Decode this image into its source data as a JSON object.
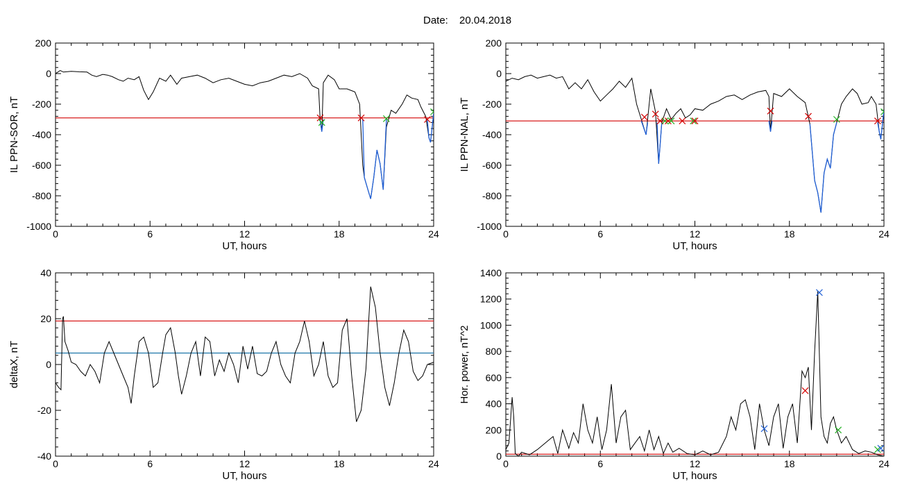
{
  "header": {
    "date_label": "Date:",
    "date_value": "20.04.2018"
  },
  "colors": {
    "trace": "#000000",
    "threshold": "#d40000",
    "cyan_level": "#1a73a8",
    "blue_overlay": "#1f5fd6",
    "marker_red": "#d40000",
    "marker_blue": "#1f5fd6",
    "marker_green": "#22b022"
  },
  "chart_data": [
    {
      "type": "line",
      "xlabel": "UT, hours",
      "ylabel": "IL PPN-SOR, nT",
      "xlim": [
        0,
        24
      ],
      "ylim": [
        -1000,
        200
      ],
      "xticks": [
        0,
        6,
        12,
        18,
        24
      ],
      "yticks": [
        200,
        0,
        -200,
        -400,
        -600,
        -800,
        -1000
      ],
      "threshold": -290,
      "series": [
        {
          "x": [
            0,
            0.3,
            0.5,
            1,
            1.5,
            2,
            2.3,
            2.6,
            3,
            3.3,
            3.6,
            4,
            4.3,
            4.6,
            5,
            5.3,
            5.6,
            5.9,
            6.2,
            6.6,
            7,
            7.3,
            7.7,
            8,
            8.5,
            9,
            9.5,
            10,
            10.5,
            11,
            11.5,
            12,
            12.5,
            13,
            13.5,
            14,
            14.5,
            15,
            15.5,
            16,
            16.3,
            16.7,
            16.8,
            16.9,
            17,
            17.3,
            17.7,
            18,
            18.5,
            19,
            19.3,
            19.5,
            19.6,
            19.8,
            20,
            20.2,
            20.4,
            20.6,
            20.8,
            21,
            21.3,
            21.6,
            22,
            22.3,
            22.6,
            23,
            23.2,
            23.5,
            23.7,
            23.8,
            24
          ],
          "y": [
            0,
            20,
            10,
            15,
            12,
            10,
            -10,
            -20,
            -5,
            -10,
            -20,
            -40,
            -50,
            -30,
            -40,
            -20,
            -110,
            -170,
            -120,
            -30,
            -50,
            -10,
            -70,
            -30,
            -20,
            -10,
            -30,
            -60,
            -40,
            -30,
            -50,
            -70,
            -80,
            -60,
            -50,
            -30,
            -10,
            -20,
            0,
            -30,
            -80,
            -100,
            -310,
            -380,
            -60,
            -10,
            -40,
            -100,
            -100,
            -120,
            -200,
            -600,
            -680,
            -750,
            -820,
            -680,
            -500,
            -590,
            -760,
            -350,
            -240,
            -260,
            -200,
            -140,
            -160,
            -170,
            -220,
            -280,
            -420,
            -450,
            -260
          ]
        },
        {
          "name": "blue overlay",
          "color": "blue",
          "segments": [
            {
              "x": [
                16.8,
                16.9,
                17
              ],
              "y": [
                -310,
                -380,
                -300
              ]
            },
            {
              "x": [
                19.5,
                19.6,
                19.8,
                20,
                20.2,
                20.4,
                20.6,
                20.8,
                21
              ],
              "y": [
                -300,
                -680,
                -750,
                -820,
                -680,
                -500,
                -590,
                -760,
                -300
              ]
            },
            {
              "x": [
                23.6,
                23.7,
                23.8,
                24
              ],
              "y": [
                -300,
                -420,
                -450,
                -260
              ]
            }
          ]
        }
      ],
      "markers": [
        {
          "x": 16.8,
          "y": -290,
          "color": "red"
        },
        {
          "x": 16.9,
          "y": -320,
          "color": "green"
        },
        {
          "x": 19.4,
          "y": -290,
          "color": "red"
        },
        {
          "x": 21.0,
          "y": -295,
          "color": "green"
        },
        {
          "x": 23.6,
          "y": -300,
          "color": "red"
        },
        {
          "x": 24.0,
          "y": -250,
          "color": "green"
        }
      ]
    },
    {
      "type": "line",
      "xlabel": "UT, hours",
      "ylabel": "IL PPN-NAL, nT",
      "xlim": [
        0,
        24
      ],
      "ylim": [
        -1000,
        200
      ],
      "xticks": [
        0,
        6,
        12,
        18,
        24
      ],
      "yticks": [
        200,
        0,
        -200,
        -400,
        -600,
        -800,
        -1000
      ],
      "threshold": -310,
      "series": [
        {
          "x": [
            0,
            0.4,
            0.8,
            1.2,
            1.6,
            2,
            2.4,
            2.8,
            3.2,
            3.6,
            4,
            4.4,
            4.8,
            5.2,
            5.6,
            6,
            6.4,
            6.8,
            7.2,
            7.6,
            8,
            8.3,
            8.6,
            8.9,
            9.2,
            9.5,
            9.7,
            9.9,
            10.2,
            10.5,
            10.8,
            11.1,
            11.4,
            11.7,
            12,
            12.5,
            13,
            13.5,
            14,
            14.5,
            15,
            15.5,
            16,
            16.5,
            16.7,
            16.8,
            17,
            17.5,
            18,
            18.5,
            19,
            19.3,
            19.6,
            19.8,
            20,
            20.2,
            20.4,
            20.6,
            20.8,
            21,
            21.3,
            21.6,
            22,
            22.3,
            22.6,
            23,
            23.2,
            23.5,
            23.7,
            23.8,
            24
          ],
          "y": [
            -50,
            -30,
            -40,
            -20,
            -10,
            -30,
            -20,
            -10,
            -30,
            -20,
            -100,
            -60,
            -100,
            -40,
            -120,
            -180,
            -140,
            -100,
            -50,
            -90,
            -30,
            -200,
            -300,
            -400,
            -100,
            -250,
            -590,
            -320,
            -230,
            -300,
            -260,
            -230,
            -290,
            -270,
            -230,
            -240,
            -200,
            -180,
            -150,
            -140,
            -170,
            -140,
            -120,
            -110,
            -150,
            -380,
            -130,
            -150,
            -100,
            -150,
            -190,
            -330,
            -700,
            -780,
            -910,
            -650,
            -560,
            -620,
            -400,
            -320,
            -200,
            -150,
            -100,
            -130,
            -200,
            -190,
            -150,
            -200,
            -380,
            -430,
            -240
          ]
        },
        {
          "name": "blue overlay",
          "color": "blue",
          "segments": [
            {
              "x": [
                8.6,
                8.9,
                9.0
              ],
              "y": [
                -310,
                -400,
                -320
              ]
            },
            {
              "x": [
                9.6,
                9.7,
                9.9
              ],
              "y": [
                -320,
                -590,
                -320
              ]
            },
            {
              "x": [
                16.7,
                16.8,
                16.9
              ],
              "y": [
                -310,
                -380,
                -310
              ]
            },
            {
              "x": [
                19.3,
                19.6,
                19.8,
                20,
                20.2,
                20.4,
                20.6,
                20.8,
                21
              ],
              "y": [
                -330,
                -700,
                -780,
                -910,
                -650,
                -560,
                -620,
                -400,
                -320
              ]
            },
            {
              "x": [
                23.6,
                23.7,
                23.8,
                24
              ],
              "y": [
                -320,
                -380,
                -430,
                -240
              ]
            }
          ]
        }
      ],
      "markers": [
        {
          "x": 8.8,
          "y": -285,
          "color": "red"
        },
        {
          "x": 9.5,
          "y": -265,
          "color": "red"
        },
        {
          "x": 9.8,
          "y": -310,
          "color": "red"
        },
        {
          "x": 10.1,
          "y": -310,
          "color": "green"
        },
        {
          "x": 10.3,
          "y": -310,
          "color": "red"
        },
        {
          "x": 10.5,
          "y": -310,
          "color": "green"
        },
        {
          "x": 11.2,
          "y": -310,
          "color": "red"
        },
        {
          "x": 11.9,
          "y": -310,
          "color": "green"
        },
        {
          "x": 12.0,
          "y": -310,
          "color": "red"
        },
        {
          "x": 16.8,
          "y": -245,
          "color": "red"
        },
        {
          "x": 19.2,
          "y": -280,
          "color": "red"
        },
        {
          "x": 21.0,
          "y": -300,
          "color": "green"
        },
        {
          "x": 23.6,
          "y": -310,
          "color": "red"
        },
        {
          "x": 24.0,
          "y": -250,
          "color": "green"
        }
      ]
    },
    {
      "type": "line",
      "xlabel": "UT, hours",
      "ylabel": "deltaX, nT",
      "xlim": [
        0,
        24
      ],
      "ylim": [
        -40,
        40
      ],
      "xticks": [
        0,
        6,
        12,
        18,
        24
      ],
      "yticks": [
        40,
        20,
        0,
        -20,
        -40
      ],
      "threshold": 19,
      "level": 5,
      "series": [
        {
          "x": [
            0,
            0.2,
            0.35,
            0.45,
            0.5,
            0.6,
            0.8,
            1,
            1.3,
            1.6,
            1.9,
            2.2,
            2.5,
            2.8,
            3.1,
            3.4,
            3.7,
            4,
            4.3,
            4.6,
            4.8,
            5,
            5.3,
            5.6,
            5.9,
            6.2,
            6.5,
            6.8,
            7,
            7.3,
            7.6,
            7.8,
            8,
            8.3,
            8.6,
            8.9,
            9.2,
            9.5,
            9.8,
            10.1,
            10.4,
            10.7,
            11,
            11.3,
            11.6,
            11.9,
            12.2,
            12.5,
            12.8,
            13.1,
            13.4,
            13.7,
            14,
            14.3,
            14.6,
            14.9,
            15.2,
            15.5,
            15.8,
            16.1,
            16.4,
            16.7,
            17,
            17.3,
            17.6,
            17.9,
            18.2,
            18.5,
            18.8,
            19.1,
            19.4,
            19.7,
            20,
            20.3,
            20.6,
            20.9,
            21.2,
            21.5,
            21.8,
            22.1,
            22.4,
            22.7,
            23,
            23.3,
            23.6,
            24
          ],
          "y": [
            -8,
            -10,
            -11,
            20,
            21,
            10,
            6,
            1,
            0,
            -3,
            -5,
            0,
            -3,
            -8,
            5,
            10,
            5,
            0,
            -5,
            -10,
            -17,
            -5,
            10,
            12,
            5,
            -10,
            -8,
            5,
            13,
            16,
            5,
            -5,
            -13,
            -5,
            5,
            10,
            -5,
            12,
            10,
            -5,
            2,
            -3,
            5,
            0,
            -8,
            8,
            -2,
            8,
            -4,
            -5,
            -3,
            5,
            10,
            0,
            -5,
            -8,
            5,
            10,
            19,
            10,
            -5,
            0,
            10,
            -5,
            -10,
            -8,
            15,
            20,
            -5,
            -25,
            -20,
            -2,
            34,
            25,
            5,
            -10,
            -18,
            -8,
            5,
            15,
            10,
            -3,
            -7,
            -5,
            0,
            1
          ]
        }
      ],
      "markers": []
    },
    {
      "type": "line",
      "xlabel": "UT, hours",
      "ylabel": "Hor. power, nT^2",
      "xlim": [
        0,
        24
      ],
      "ylim": [
        0,
        1400
      ],
      "xticks": [
        0,
        6,
        12,
        18,
        24
      ],
      "yticks": [
        0,
        200,
        400,
        600,
        800,
        1000,
        1200,
        1400
      ],
      "threshold": 15,
      "series": [
        {
          "x": [
            0,
            0.2,
            0.4,
            0.5,
            0.6,
            0.8,
            1,
            1.5,
            2,
            2.5,
            3,
            3.3,
            3.6,
            4,
            4.3,
            4.6,
            4.9,
            5.2,
            5.5,
            5.8,
            6.1,
            6.4,
            6.7,
            7,
            7.3,
            7.6,
            7.9,
            8.2,
            8.5,
            8.8,
            9.1,
            9.4,
            9.7,
            10,
            10.3,
            10.6,
            11,
            11.5,
            12,
            12.5,
            13,
            13.5,
            14,
            14.3,
            14.6,
            14.9,
            15.2,
            15.5,
            15.8,
            16.1,
            16.4,
            16.7,
            17,
            17.3,
            17.6,
            17.9,
            18.2,
            18.5,
            18.8,
            19,
            19.2,
            19.4,
            19.6,
            19.8,
            20,
            20.2,
            20.4,
            20.6,
            20.8,
            21,
            21.3,
            21.6,
            22,
            22.4,
            22.8,
            23.2,
            23.6,
            24
          ],
          "y": [
            50,
            100,
            450,
            300,
            20,
            0,
            30,
            10,
            50,
            100,
            150,
            20,
            200,
            60,
            180,
            100,
            400,
            200,
            100,
            300,
            50,
            200,
            550,
            100,
            300,
            350,
            50,
            100,
            150,
            40,
            200,
            50,
            150,
            20,
            100,
            30,
            60,
            20,
            10,
            40,
            10,
            30,
            150,
            300,
            200,
            400,
            430,
            300,
            50,
            400,
            200,
            80,
            300,
            400,
            60,
            300,
            400,
            100,
            650,
            600,
            680,
            200,
            800,
            1260,
            300,
            150,
            100,
            250,
            300,
            200,
            100,
            150,
            50,
            20,
            40,
            30,
            10,
            0
          ]
        }
      ],
      "markers": [
        {
          "x": 16.4,
          "y": 210,
          "color": "blue"
        },
        {
          "x": 19.0,
          "y": 500,
          "color": "red"
        },
        {
          "x": 19.9,
          "y": 1250,
          "color": "blue"
        },
        {
          "x": 21.1,
          "y": 200,
          "color": "green"
        },
        {
          "x": 23.6,
          "y": 50,
          "color": "green"
        },
        {
          "x": 23.8,
          "y": 60,
          "color": "blue"
        }
      ]
    }
  ]
}
